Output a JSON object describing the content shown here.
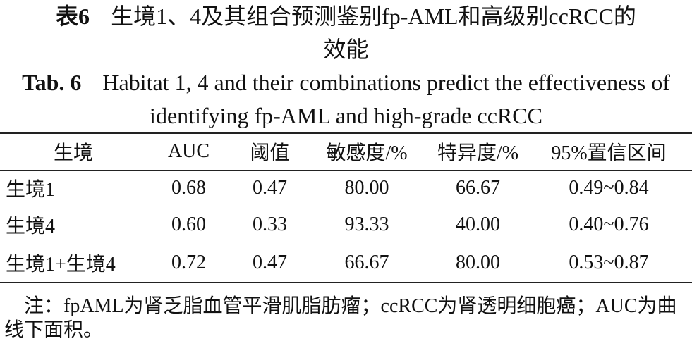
{
  "title_cn": {
    "label": "表6",
    "text": "生境1、4及其组合预测鉴别fp-AML和高级别ccRCC的效能"
  },
  "title_en": {
    "label": "Tab. 6",
    "text": "Habitat 1, 4 and their combinations predict the effectiveness of identifying fp-AML and high-grade ccRCC"
  },
  "table": {
    "header": [
      "生境",
      "AUC",
      "阈值",
      "敏感度/%",
      "特异度/%",
      "95%置信区间"
    ],
    "rows": [
      [
        "生境1",
        "0.68",
        "0.47",
        "80.00",
        "66.67",
        "0.49~0.84"
      ],
      [
        "生境4",
        "0.60",
        "0.33",
        "93.33",
        "40.00",
        "0.40~0.76"
      ],
      [
        "生境1+生境4",
        "0.72",
        "0.47",
        "66.67",
        "80.00",
        "0.53~0.87"
      ]
    ]
  },
  "note": "注：fpAML为肾乏脂血管平滑肌脂肪瘤；ccRCC为肾透明细胞癌；AUC为曲线下面积。"
}
